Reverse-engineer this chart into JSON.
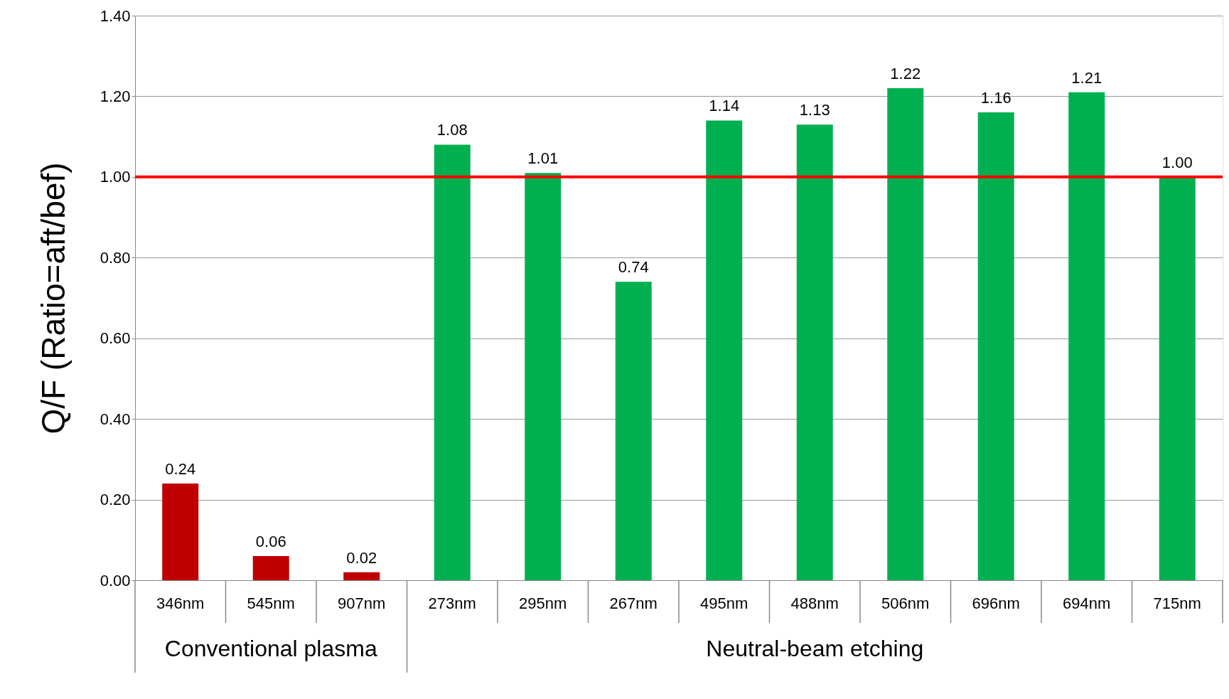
{
  "chart_data": {
    "type": "bar",
    "ylabel": "Q/F  (Ratio=aft/bef)",
    "categories": [
      "346nm",
      "545nm",
      "907nm",
      "273nm",
      "295nm",
      "267nm",
      "495nm",
      "488nm",
      "506nm",
      "696nm",
      "694nm",
      "715nm"
    ],
    "values": [
      0.24,
      0.06,
      0.02,
      1.08,
      1.01,
      0.74,
      1.14,
      1.13,
      1.22,
      1.16,
      1.21,
      1.0
    ],
    "value_labels": [
      "0.24",
      "0.06",
      "0.02",
      "1.08",
      "1.01",
      "0.74",
      "1.14",
      "1.13",
      "1.22",
      "1.16",
      "1.21",
      "1.00"
    ],
    "colors": [
      "#c00000",
      "#c00000",
      "#c00000",
      "#00b050",
      "#00b050",
      "#00b050",
      "#00b050",
      "#00b050",
      "#00b050",
      "#00b050",
      "#00b050",
      "#00b050"
    ],
    "ylim": [
      0,
      1.4
    ],
    "yticks": [
      {
        "value": 0,
        "label": "0.00"
      },
      {
        "value": 0.2,
        "label": "0.20"
      },
      {
        "value": 0.4,
        "label": "0.40"
      },
      {
        "value": 0.6,
        "label": "0.60"
      },
      {
        "value": 0.8,
        "label": "0.80"
      },
      {
        "value": 1.0,
        "label": "1.00"
      },
      {
        "value": 1.2,
        "label": "1.20"
      },
      {
        "value": 1.4,
        "label": "1.40"
      }
    ],
    "grid": "y",
    "ref_lines": [
      {
        "axis": "y",
        "value": 1.0,
        "color": "#ff0000"
      }
    ],
    "annotations": [
      "Conventional plasma",
      "Neutral-beam etching"
    ]
  }
}
